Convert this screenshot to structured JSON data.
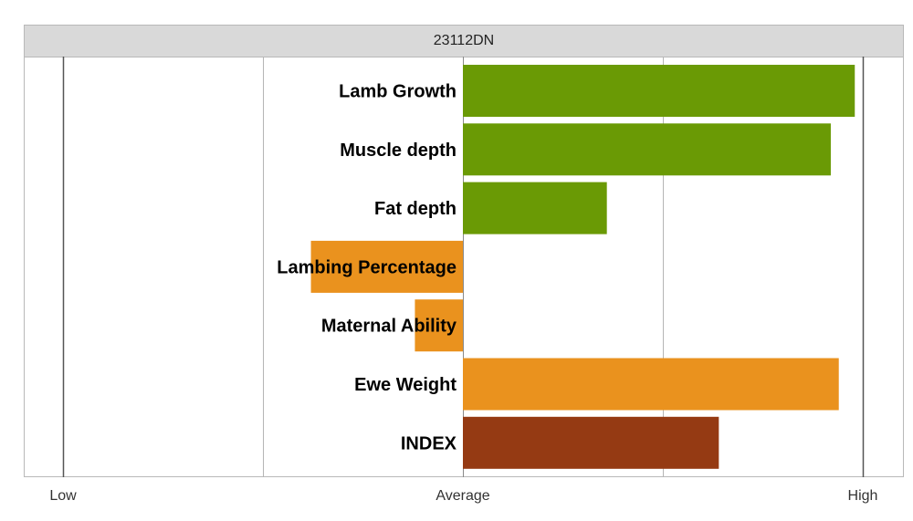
{
  "chart_data": {
    "type": "bar",
    "orientation": "horizontal",
    "title": "23112DN",
    "categories": [
      "Lamb Growth",
      "Muscle depth",
      "Fat depth",
      "Lambing Percentage",
      "Maternal Ability",
      "Ewe Weight",
      "INDEX"
    ],
    "values": [
      0.98,
      0.92,
      0.36,
      -0.38,
      -0.12,
      0.94,
      0.64
    ],
    "xlim": [
      -1,
      1
    ],
    "x_ticks": [
      {
        "value": -1,
        "label": "Low"
      },
      {
        "value": 0,
        "label": "Average"
      },
      {
        "value": 1,
        "label": "High"
      }
    ],
    "gridlines": [
      -1,
      -0.5,
      0,
      0.5,
      1
    ],
    "grid": true,
    "bar_colors": [
      "#6a9a05",
      "#6a9a05",
      "#6a9a05",
      "#ea921e",
      "#ea921e",
      "#ea921e",
      "#953a13"
    ]
  }
}
